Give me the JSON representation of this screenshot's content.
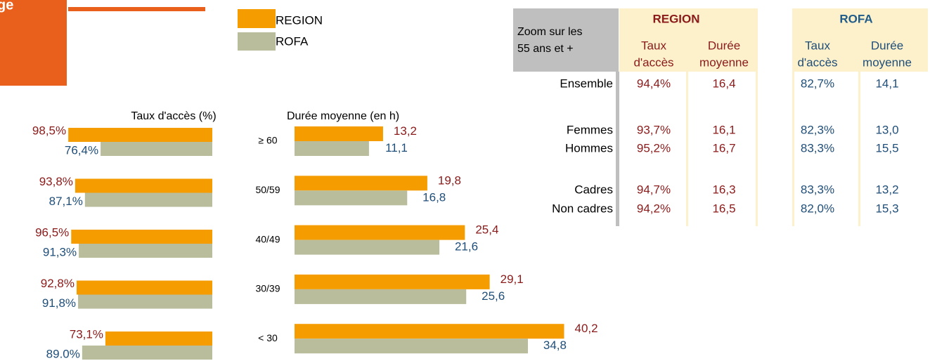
{
  "header_fragment": "ge",
  "chart_data": [
    {
      "type": "bar",
      "orientation": "horizontal",
      "x_inverted": true,
      "title": "Taux d'accès (%)",
      "xlim": [
        0,
        100
      ],
      "series": [
        {
          "name": "REGION",
          "color": "#f59c00",
          "values": [
            98.5,
            93.8,
            96.5,
            92.8,
            73.1
          ],
          "value_labels": [
            "98,5%",
            "93,8%",
            "96,5%",
            "92,8%",
            "73,1%"
          ]
        },
        {
          "name": "ROFA",
          "color": "#b9bd9b",
          "values": [
            76.4,
            87.1,
            91.3,
            91.8,
            89.0
          ],
          "value_labels": [
            "76,4%",
            "87,1%",
            "91,3%",
            "91,8%",
            "89.0%"
          ]
        }
      ]
    },
    {
      "type": "bar",
      "orientation": "horizontal",
      "x_inverted": false,
      "title": "Durée moyenne (en h)",
      "categories": [
        "≥ 60",
        "50/59",
        "40/49",
        "30/39",
        "< 30"
      ],
      "xlim": [
        0,
        50
      ],
      "series": [
        {
          "name": "REGION",
          "color": "#f59c00",
          "values": [
            13.2,
            19.8,
            25.4,
            29.1,
            40.2
          ],
          "value_labels": [
            "13,2",
            "19,8",
            "25,4",
            "29,1",
            "40,2"
          ]
        },
        {
          "name": "ROFA",
          "color": "#b9bd9b",
          "values": [
            11.1,
            16.8,
            21.6,
            25.6,
            34.8
          ],
          "value_labels": [
            "11,1",
            "16,8",
            "21,6",
            "25,6",
            "34,8"
          ]
        }
      ]
    }
  ],
  "table": {
    "corner": [
      "Zoom sur les",
      "55 ans et +"
    ],
    "groups": [
      "REGION",
      "ROFA"
    ],
    "subheaders": [
      [
        "Taux",
        "d'accès"
      ],
      [
        "Durée",
        "moyenne"
      ],
      [
        "Taux",
        "d'accès"
      ],
      [
        "Durée",
        "moyenne"
      ]
    ],
    "rows": [
      [
        "Ensemble",
        "94,4%",
        "16,4",
        "82,7%",
        "14,1"
      ],
      [
        "Femmes",
        "93,7%",
        "16,1",
        "82,3%",
        "13,0"
      ],
      [
        "Hommes",
        "95,2%",
        "16,7",
        "83,3%",
        "15,5"
      ],
      [
        "Cadres",
        "94,7%",
        "16,3",
        "83,3%",
        "13,2"
      ],
      [
        "Non cadres",
        "94,2%",
        "16,5",
        "82,0%",
        "15,3"
      ]
    ]
  }
}
